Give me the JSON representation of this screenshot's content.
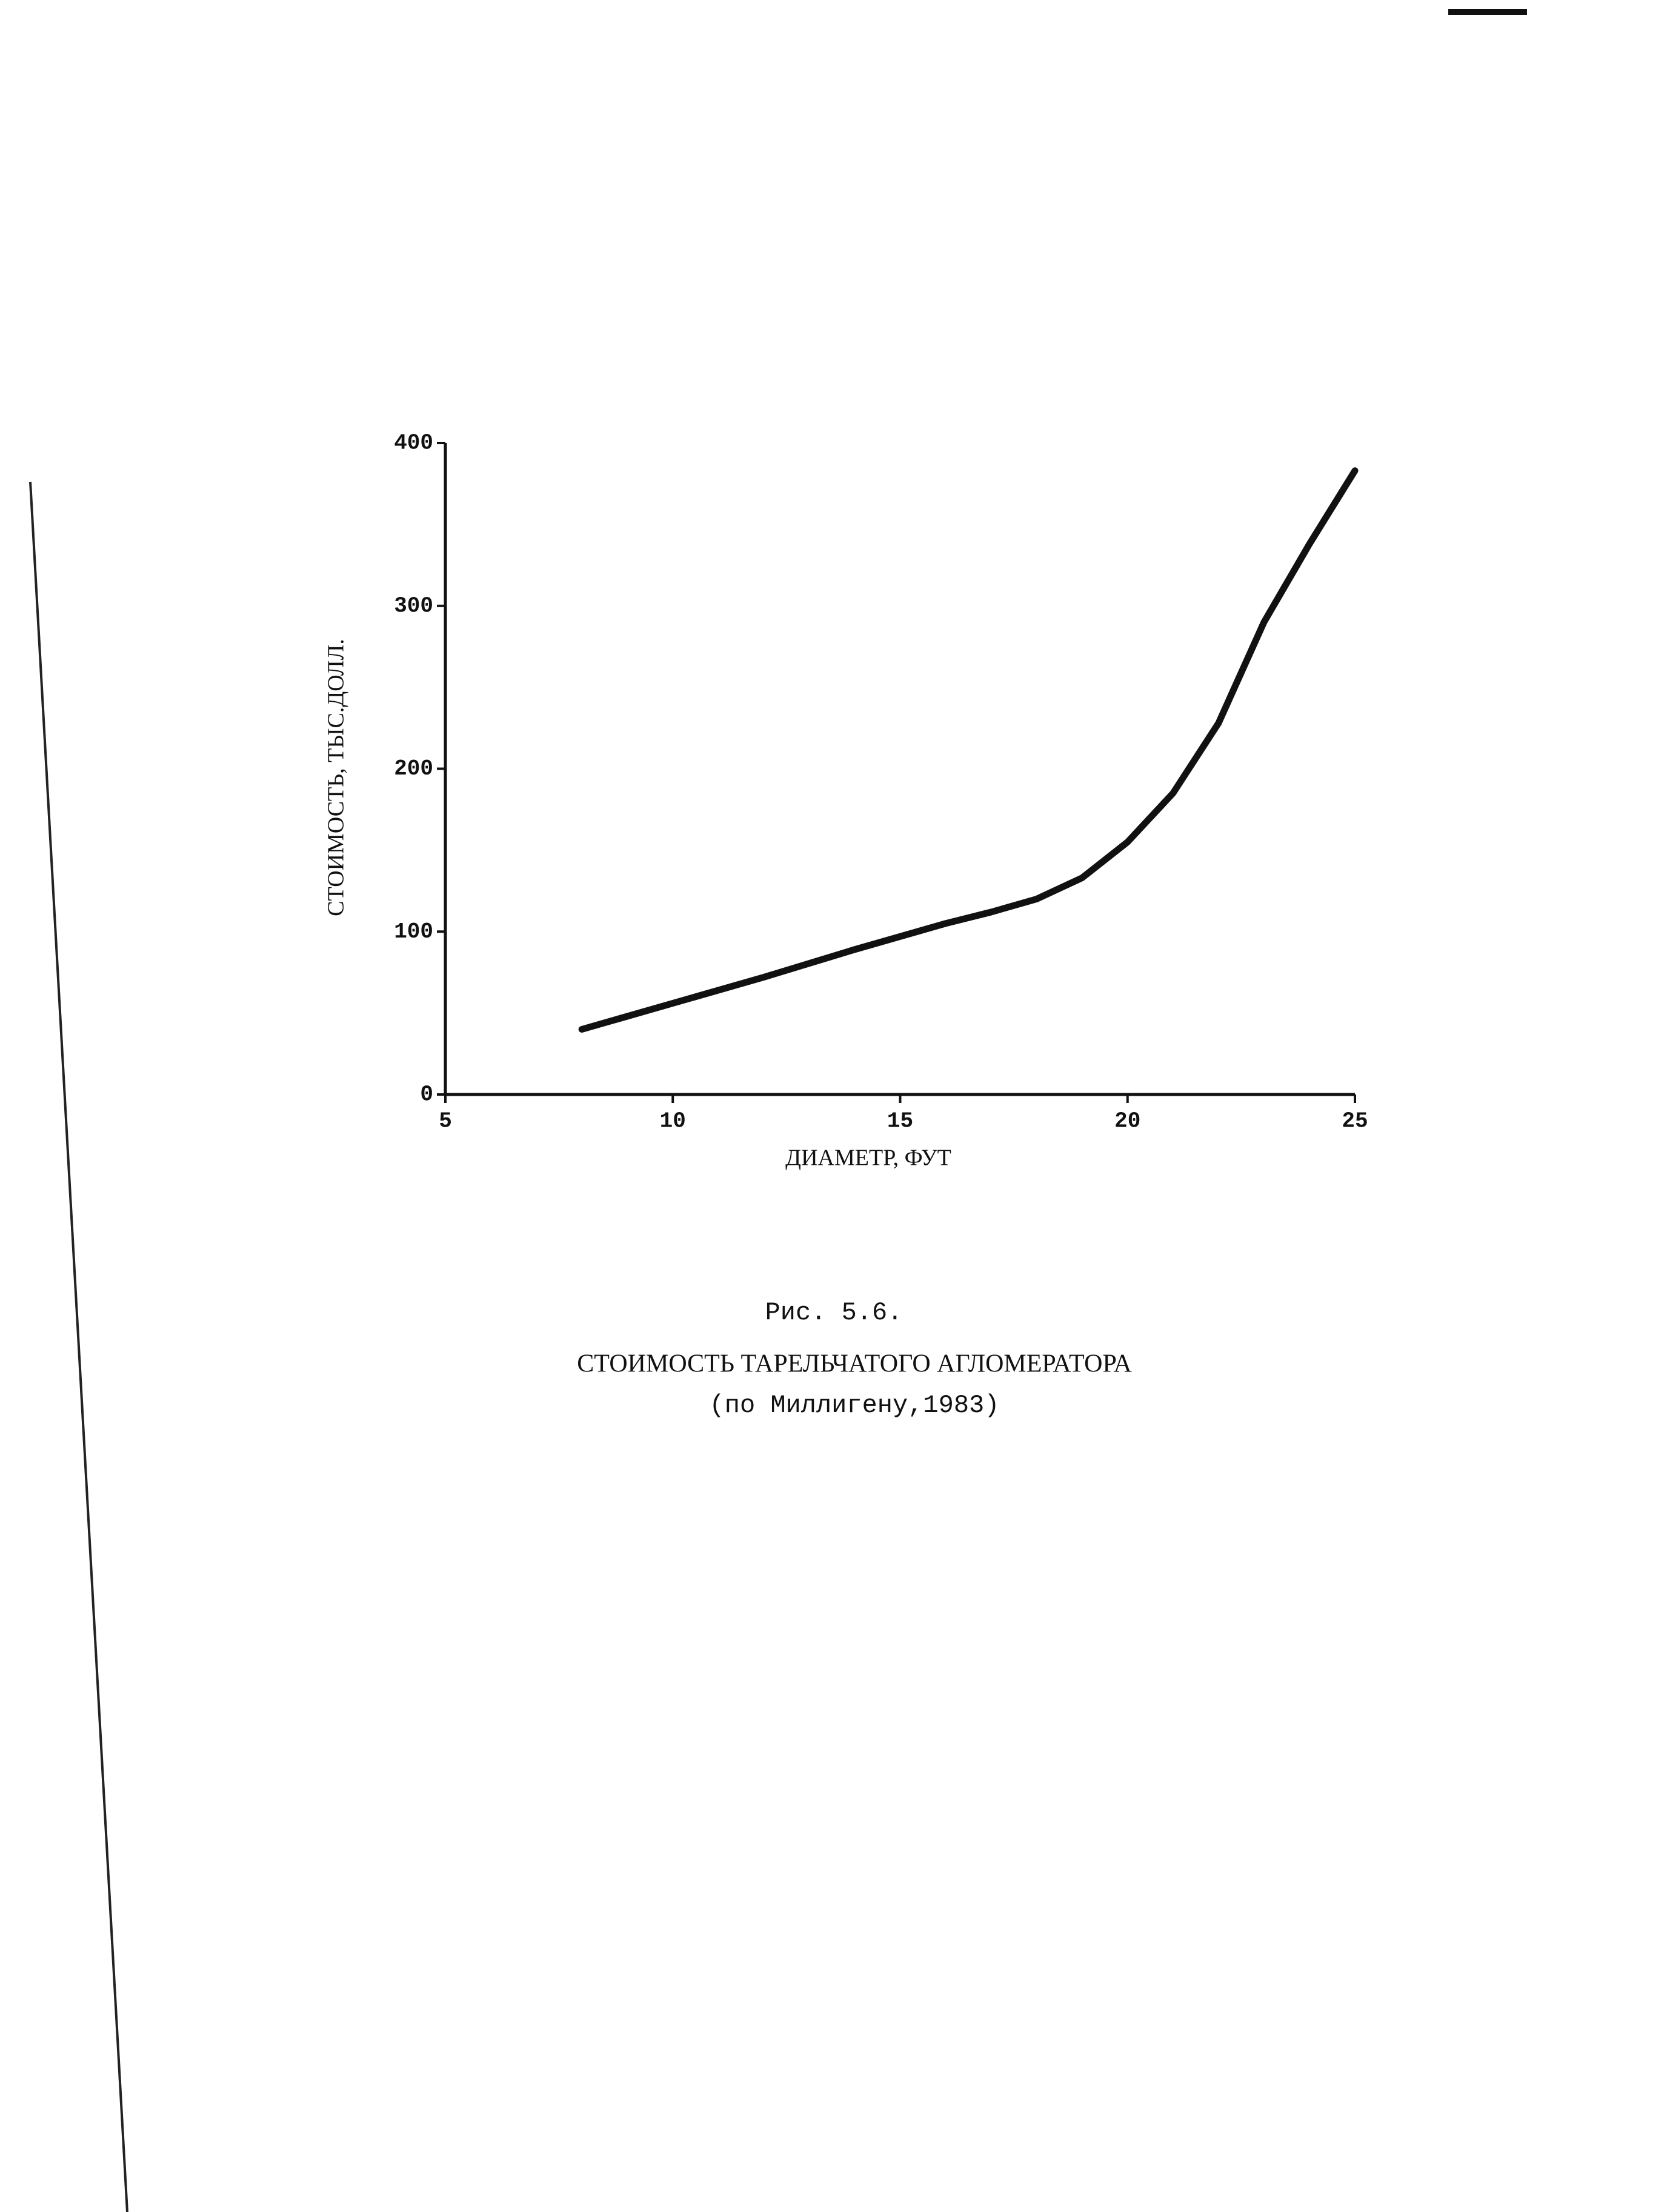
{
  "chart_data": {
    "type": "line",
    "x_label": "ДИАМЕТР, ФУТ",
    "y_label": "СТОИМОСТЬ, ТЫС.ДОЛЛ.",
    "x": [
      8,
      10,
      12,
      14,
      15,
      16,
      17,
      18,
      19,
      20,
      21,
      22,
      23,
      24,
      25
    ],
    "series": [
      {
        "color": "#111111",
        "values": [
          40,
          56,
          72,
          89,
          97,
          105,
          112,
          120,
          133,
          155,
          185,
          228,
          290,
          338,
          383
        ]
      }
    ],
    "xlim": [
      5,
      25
    ],
    "xticks": [
      5,
      10,
      15,
      20,
      25
    ],
    "ylim": [
      0,
      400
    ],
    "yticks": [
      0,
      100,
      200,
      300,
      400
    ]
  },
  "caption": {
    "figure": "Рис. 5.6.",
    "title": "СТОИМОСТЬ ТАРЕЛЬЧАТОГО АГЛОМЕРАТОРА",
    "source": "(по Миллигену,1983)"
  }
}
